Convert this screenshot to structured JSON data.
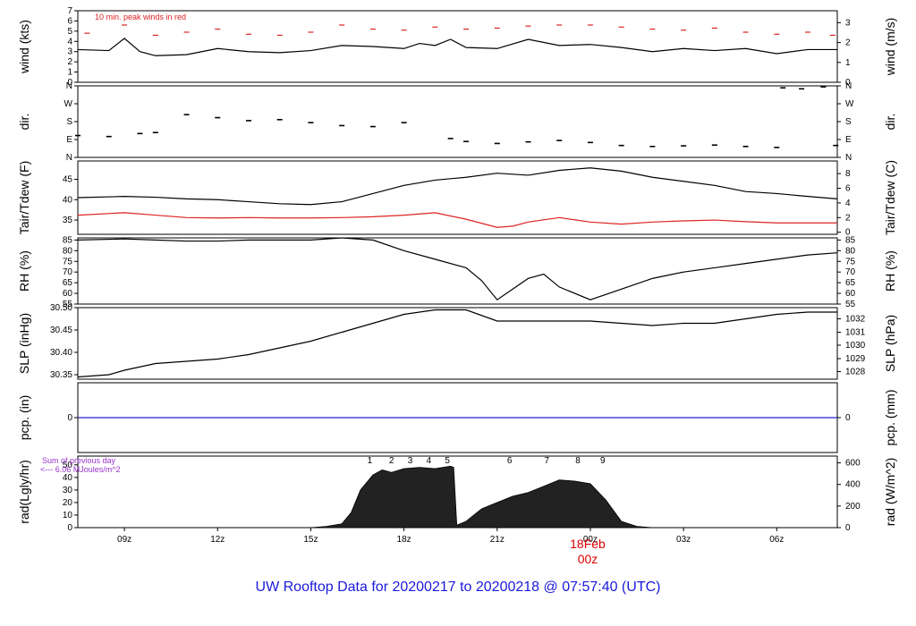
{
  "footer_title": "UW Rooftop Data for 20200217  to  20200218 @ 07:57:40  (UTC)",
  "colors": {
    "axis": "#000000",
    "series": "#000000",
    "peak": "#dd2222",
    "dew": "#dd2222",
    "pcp": "#2222cc",
    "note": "#9933cc",
    "date": "#dd0000"
  },
  "annotations": {
    "peak_note": "10 min. peak winds in red",
    "rad_note_1": "Sum of previous day",
    "rad_note_2": "<--- 6.06 MJoules/m^2",
    "hour_markers": [
      "1",
      "2",
      "3",
      "4",
      "5",
      "6",
      "7",
      "8",
      "9"
    ],
    "date_label": "18Feb",
    "date_sub": "00z"
  },
  "chart_data": {
    "type": "line",
    "x_range_hours": [
      7.5,
      31.95
    ],
    "x_ticks": [
      "09z",
      "12z",
      "15z",
      "18z",
      "21z",
      "00z",
      "03z",
      "06z"
    ],
    "x_tick_hours": [
      9,
      12,
      15,
      18,
      21,
      24,
      27,
      30
    ],
    "hour_marker_hours": [
      16.9,
      17.6,
      18.2,
      18.8,
      19.4,
      21.4,
      22.6,
      23.6,
      24.4
    ],
    "panels": [
      {
        "id": "wind",
        "ylabel_left": "wind (kts)",
        "ylabel_right": "wind (m/s)",
        "ylim": [
          0,
          7
        ],
        "yticks_left": [
          "0",
          "1",
          "2",
          "3",
          "4",
          "5",
          "6",
          "7"
        ],
        "yticks_left_vals": [
          0,
          1,
          2,
          3,
          4,
          5,
          6,
          7
        ],
        "yticks_right": [
          "0",
          "1",
          "2",
          "3"
        ],
        "yticks_right_vals": [
          0,
          1.944,
          3.888,
          5.832
        ],
        "series": [
          {
            "style": "line",
            "x": [
              7.5,
              8.5,
              9,
              9.5,
              10,
              11,
              12,
              13,
              14,
              15,
              16,
              17,
              18,
              18.5,
              19,
              19.5,
              20,
              21,
              22,
              23,
              24,
              25,
              26,
              27,
              28,
              29,
              30,
              31,
              31.95
            ],
            "y": [
              3.2,
              3.1,
              4.3,
              3.0,
              2.6,
              2.7,
              3.3,
              3.0,
              2.9,
              3.1,
              3.6,
              3.5,
              3.3,
              3.8,
              3.6,
              4.2,
              3.4,
              3.3,
              4.2,
              3.6,
              3.7,
              3.4,
              3.0,
              3.3,
              3.1,
              3.3,
              2.8,
              3.2,
              3.2
            ]
          },
          {
            "style": "dash",
            "x": [
              7.8,
              9,
              10,
              11,
              12,
              13,
              14,
              15,
              16,
              17,
              18,
              19,
              20,
              21,
              22,
              23,
              24,
              25,
              26,
              27,
              28,
              29,
              30,
              31,
              31.8
            ],
            "y": [
              4.8,
              5.6,
              4.6,
              4.9,
              5.2,
              4.7,
              4.6,
              4.9,
              5.6,
              5.2,
              5.1,
              5.4,
              5.2,
              5.3,
              5.5,
              5.6,
              5.6,
              5.4,
              5.2,
              5.1,
              5.3,
              4.9,
              4.7,
              4.9,
              4.6
            ]
          }
        ]
      },
      {
        "id": "dir",
        "ylabel_left": "dir.",
        "ylabel_right": "dir.",
        "ylim": [
          0,
          360
        ],
        "yticks_left": [
          "N",
          "E",
          "S",
          "W",
          "N"
        ],
        "yticks_left_vals": [
          0,
          90,
          180,
          270,
          360
        ],
        "yticks_right": [
          "N",
          "E",
          "S",
          "W",
          "N"
        ],
        "yticks_right_vals": [
          0,
          90,
          180,
          270,
          360
        ],
        "series": [
          {
            "style": "scatter",
            "x": [
              7.5,
              8.5,
              9.5,
              10,
              11,
              12,
              13,
              14,
              15,
              16,
              17,
              18,
              19.5,
              20,
              21,
              22,
              23,
              24,
              25,
              26,
              27,
              28,
              29,
              30,
              30.2,
              30.8,
              31.5,
              31.9
            ],
            "y": [
              110,
              105,
              120,
              125,
              215,
              200,
              185,
              190,
              175,
              160,
              155,
              175,
              95,
              80,
              70,
              78,
              85,
              75,
              60,
              55,
              58,
              62,
              55,
              50,
              350,
              345,
              355,
              60
            ]
          }
        ]
      },
      {
        "id": "temp",
        "ylabel_left": "Tair/Tdew (F)",
        "ylabel_right": "Tair/Tdew (C)",
        "ylim": [
          31.5,
          49.5
        ],
        "yticks_left": [
          "35",
          "40",
          "45"
        ],
        "yticks_left_vals": [
          35,
          40,
          45
        ],
        "yticks_right": [
          "0",
          "2",
          "4",
          "6",
          "8"
        ],
        "yticks_right_vals": [
          32,
          35.6,
          39.2,
          42.8,
          46.4
        ],
        "series": [
          {
            "style": "line",
            "x": [
              7.5,
              9,
              10,
              11,
              12,
              13,
              14,
              15,
              16,
              17,
              18,
              19,
              20,
              21,
              22,
              23,
              24,
              25,
              26,
              27,
              28,
              29,
              30,
              31,
              31.95
            ],
            "y": [
              40.5,
              40.8,
              40.6,
              40.2,
              40.0,
              39.5,
              39.0,
              38.8,
              39.5,
              41.5,
              43.5,
              44.8,
              45.5,
              46.5,
              46.0,
              47.2,
              47.8,
              47.0,
              45.5,
              44.5,
              43.5,
              42.0,
              41.5,
              40.8,
              40.2
            ]
          },
          {
            "style": "line",
            "color": "dew",
            "x": [
              7.5,
              9,
              10,
              11,
              12,
              13,
              14,
              15,
              16,
              17,
              18,
              19,
              20,
              21,
              21.5,
              22,
              23,
              24,
              25,
              26,
              27,
              28,
              29,
              30,
              31,
              31.95
            ],
            "y": [
              36.2,
              36.8,
              36.2,
              35.6,
              35.5,
              35.6,
              35.5,
              35.5,
              35.6,
              35.8,
              36.2,
              36.8,
              35.2,
              33.2,
              33.5,
              34.5,
              35.6,
              34.5,
              34.0,
              34.5,
              34.8,
              35.0,
              34.6,
              34.3,
              34.3,
              34.3
            ]
          }
        ]
      },
      {
        "id": "rh",
        "ylabel_left": "RH (%)",
        "ylabel_right": "RH (%)",
        "ylim": [
          55,
          86
        ],
        "yticks_left": [
          "55",
          "60",
          "65",
          "70",
          "75",
          "80",
          "85"
        ],
        "yticks_left_vals": [
          55,
          60,
          65,
          70,
          75,
          80,
          85
        ],
        "yticks_right": [
          "55",
          "60",
          "65",
          "70",
          "75",
          "80",
          "85"
        ],
        "yticks_right_vals": [
          55,
          60,
          65,
          70,
          75,
          80,
          85
        ],
        "series": [
          {
            "style": "line",
            "x": [
              7.5,
              9,
              10,
              11,
              12,
              13,
              14,
              15,
              16,
              17,
              18,
              19,
              20,
              20.5,
              21,
              22,
              22.5,
              23,
              24,
              25,
              26,
              27,
              28,
              29,
              30,
              31,
              31.95
            ],
            "y": [
              85,
              85.5,
              85,
              84.5,
              84.5,
              85,
              85,
              85,
              86,
              85,
              80,
              76,
              72,
              66,
              57,
              67,
              69,
              63,
              57,
              62,
              67,
              70,
              72,
              74,
              76,
              78,
              79
            ]
          }
        ]
      },
      {
        "id": "slp",
        "ylabel_left": "SLP (inHg)",
        "ylabel_right": "SLP (hPa)",
        "ylim": [
          30.34,
          30.5
        ],
        "yticks_left": [
          "30.35",
          "30.40",
          "30.45",
          "30.50"
        ],
        "yticks_left_vals": [
          30.35,
          30.4,
          30.45,
          30.5
        ],
        "yticks_right": [
          "1028",
          "1029",
          "1030",
          "1031",
          "1032"
        ],
        "yticks_right_vals": [
          30.357,
          30.386,
          30.416,
          30.445,
          30.475
        ],
        "series": [
          {
            "style": "line",
            "x": [
              7.5,
              8.5,
              9,
              10,
              11,
              12,
              13,
              14,
              15,
              16,
              17,
              18,
              19,
              20,
              21,
              22,
              23,
              24,
              25,
              26,
              27,
              28,
              29,
              30,
              31,
              31.95
            ],
            "y": [
              30.345,
              30.35,
              30.36,
              30.375,
              30.38,
              30.385,
              30.395,
              30.41,
              30.425,
              30.445,
              30.465,
              30.485,
              30.495,
              30.495,
              30.47,
              30.47,
              30.47,
              30.47,
              30.465,
              30.46,
              30.465,
              30.465,
              30.475,
              30.485,
              30.49,
              30.49
            ]
          }
        ]
      },
      {
        "id": "pcp",
        "ylabel_left": "pcp. (in)",
        "ylabel_right": "pcp. (mm)",
        "ylim": [
          -1,
          1
        ],
        "yticks_left": [
          "0"
        ],
        "yticks_left_vals": [
          0
        ],
        "yticks_right": [
          "0"
        ],
        "yticks_right_vals": [
          0
        ],
        "series": [
          {
            "style": "line",
            "color": "pcp",
            "x": [
              7.5,
              31.95
            ],
            "y": [
              0,
              0
            ]
          }
        ]
      },
      {
        "id": "rad",
        "ylabel_left": "rad(Lgly/hr)",
        "ylabel_right": "rad (W/m^2)",
        "ylim": [
          0,
          57
        ],
        "yticks_left": [
          "0",
          "10",
          "20",
          "30",
          "40",
          "50"
        ],
        "yticks_left_vals": [
          0,
          10,
          20,
          30,
          40,
          50
        ],
        "yticks_right": [
          "0",
          "200",
          "400",
          "600"
        ],
        "yticks_right_vals": [
          0,
          17.2,
          34.4,
          51.6
        ],
        "series": [
          {
            "style": "area",
            "x": [
              15,
              15.5,
              16,
              16.3,
              16.6,
              17,
              17.3,
              17.6,
              18,
              18.5,
              19,
              19.5,
              19.6,
              19.7,
              20,
              20.5,
              21,
              21.5,
              22,
              22.5,
              23,
              23.5,
              24,
              24.5,
              25,
              25.5,
              26
            ],
            "y": [
              0,
              1,
              3,
              12,
              30,
              42,
              46,
              44,
              47,
              48,
              47,
              49,
              48,
              2,
              5,
              15,
              20,
              25,
              28,
              33,
              38,
              37,
              35,
              22,
              5,
              1,
              0
            ]
          }
        ]
      }
    ]
  }
}
